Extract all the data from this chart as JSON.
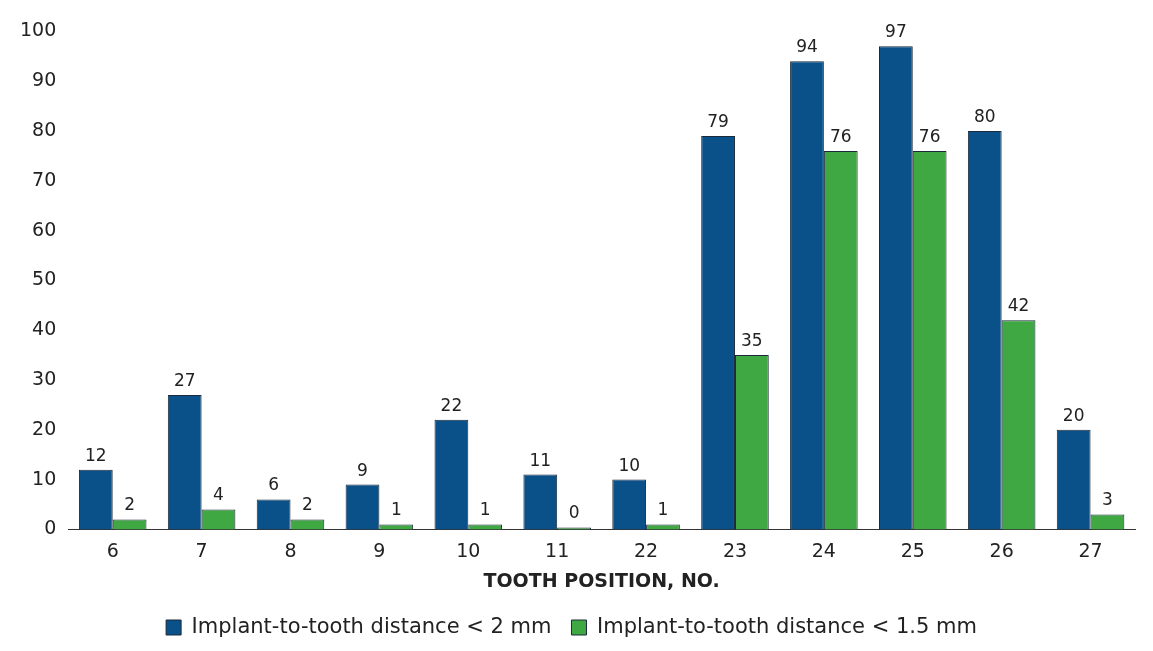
{
  "chart_data": {
    "type": "bar",
    "xlabel": "TOOTH POSITION, NO.",
    "categories": [
      "6",
      "7",
      "8",
      "9",
      "10",
      "11",
      "22",
      "23",
      "24",
      "25",
      "26",
      "27"
    ],
    "series": [
      {
        "name": "Implant-to-tooth distance < 2 mm",
        "color": "#0b5189",
        "values": [
          12,
          27,
          6,
          9,
          22,
          11,
          10,
          79,
          94,
          97,
          80,
          20
        ]
      },
      {
        "name": "Implant-to-tooth distance < 1.5 mm",
        "color": "#3fa842",
        "values": [
          2,
          4,
          2,
          1,
          1,
          0,
          1,
          35,
          76,
          76,
          42,
          3
        ]
      }
    ],
    "ylim": [
      0,
      100
    ],
    "yticks": [
      0,
      10,
      20,
      30,
      40,
      50,
      60,
      70,
      80,
      90,
      100
    ],
    "grid": false,
    "legend": "bottom",
    "data_labels": true
  }
}
